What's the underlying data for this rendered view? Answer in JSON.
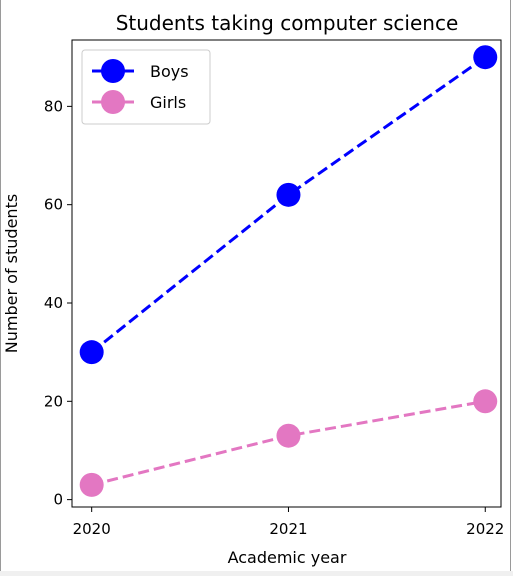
{
  "chart_data": {
    "type": "line",
    "title": "Students taking computer science",
    "xlabel": "Academic year",
    "ylabel": "Number of students",
    "x": [
      2020,
      2021,
      2022
    ],
    "x_tick_labels": [
      "2020",
      "2021",
      "2022"
    ],
    "xlim": [
      2019.9,
      2022.08
    ],
    "y_ticks": [
      0,
      20,
      40,
      60,
      80
    ],
    "y_tick_labels": [
      "0",
      "20",
      "40",
      "60",
      "80"
    ],
    "ylim": [
      -1.5,
      93.5
    ],
    "grid": false,
    "legend_position": "top-left",
    "series": [
      {
        "name": "Boys",
        "values": [
          30,
          62,
          90
        ],
        "color": "#0000ff",
        "linestyle": "dashed",
        "marker": "circle"
      },
      {
        "name": "Girls",
        "values": [
          3,
          13,
          20
        ],
        "color": "#e377c2",
        "linestyle": "dashed",
        "marker": "circle"
      }
    ]
  }
}
